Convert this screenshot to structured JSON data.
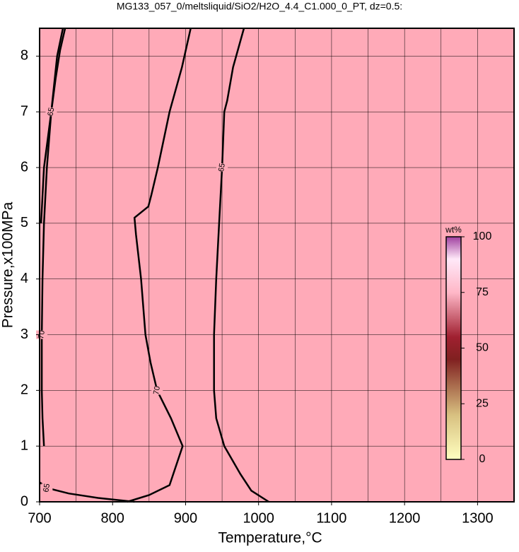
{
  "chart_data": {
    "type": "contour",
    "title": "MG133_057_0/meltsliquid/SiO2/H2O_4.4_C1.000_0_PT, dz=0.5:",
    "x_label": "Temperature,°C",
    "y_label": "Pressure,x100MPa",
    "xlim": [
      700,
      1350
    ],
    "ylim": [
      0,
      8.5
    ],
    "xticks": [
      700,
      800,
      900,
      1000,
      1100,
      1200,
      1300
    ],
    "xminorticks": [
      750,
      850,
      950,
      1050,
      1150,
      1250
    ],
    "yticks": [
      0,
      1,
      2,
      3,
      4,
      5,
      6,
      7,
      8
    ],
    "grid": true,
    "background": "#ffaab8",
    "contours": [
      {
        "level": 70,
        "x": [
          820,
          850,
          878,
          896,
          880,
          861,
          852,
          845,
          839,
          832,
          830,
          849,
          853,
          862,
          878,
          895,
          907
        ],
        "y": [
          0,
          0.12,
          0.3,
          1,
          1.5,
          2,
          2.5,
          3,
          4,
          4.8,
          5.1,
          5.3,
          5.5,
          6,
          7,
          7.8,
          8.5
        ]
      },
      {
        "level": 65,
        "x": [
          1014,
          990,
          975,
          953,
          942,
          939,
          939,
          942,
          946,
          950,
          953,
          957,
          965,
          980
        ],
        "y": [
          0,
          0.2,
          0.5,
          1,
          1.5,
          2,
          3,
          4,
          5,
          6,
          7,
          7.2,
          7.8,
          8.5
        ]
      },
      {
        "level": 70,
        "x": [
          706,
          704,
          703,
          703,
          704,
          706,
          710,
          716,
          724,
          732
        ],
        "y": [
          1,
          1.5,
          2,
          3,
          4,
          5,
          6,
          7,
          8,
          8.5
        ]
      },
      {
        "level": 65,
        "x": [
          702,
          706,
          711,
          716,
          722,
          728,
          735
        ],
        "y": [
          5,
          6,
          6.5,
          7,
          7.6,
          8.1,
          8.5
        ]
      },
      {
        "level": 65,
        "x": [
          700,
          710,
          740,
          780,
          830
        ],
        "y": [
          0.35,
          0.25,
          0.15,
          0.07,
          0
        ]
      }
    ],
    "colorbar": {
      "label": "wt%",
      "lim": [
        0,
        100
      ],
      "ticks": [
        0,
        25,
        50,
        75,
        100
      ],
      "colors": [
        {
          "value": 0,
          "color": "#ffffc0"
        },
        {
          "value": 20,
          "color": "#d8c080"
        },
        {
          "value": 45,
          "color": "#802020"
        },
        {
          "value": 55,
          "color": "#a02030"
        },
        {
          "value": 75,
          "color": "#ffb8c8"
        },
        {
          "value": 90,
          "color": "#ffe8f8"
        },
        {
          "value": 100,
          "color": "#a040a0"
        }
      ]
    }
  }
}
